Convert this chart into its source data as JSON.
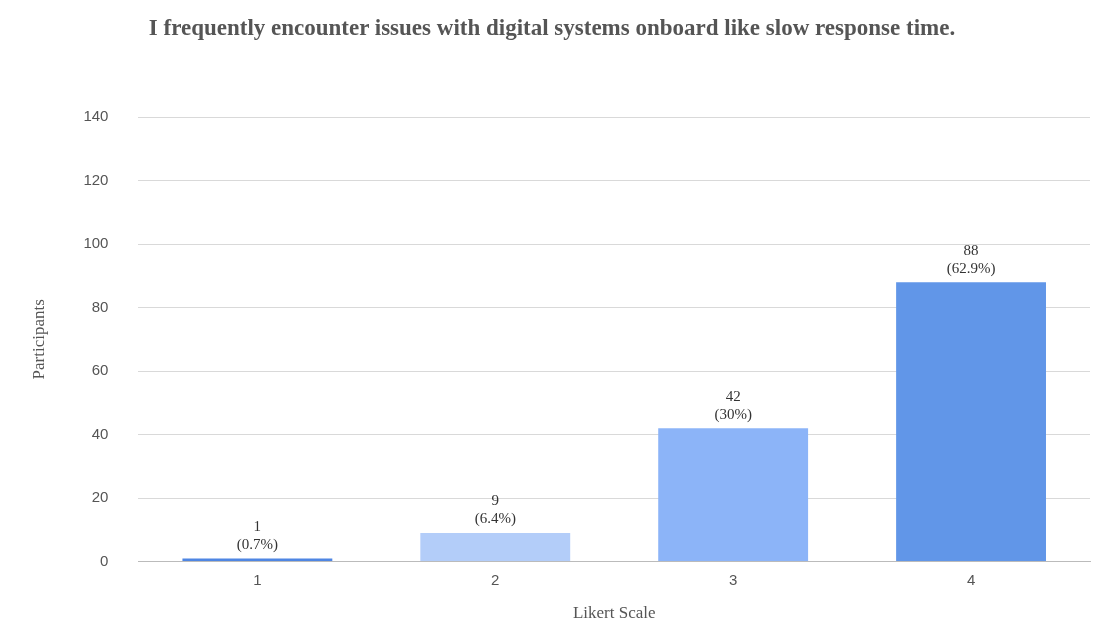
{
  "chart_data": {
    "type": "bar",
    "title": "I frequently encounter issues with digital systems onboard like slow response time.",
    "xlabel": "Likert Scale",
    "ylabel": "Participants",
    "categories": [
      "1",
      "2",
      "3",
      "4"
    ],
    "values": [
      1,
      9,
      42,
      88
    ],
    "colors": [
      "#4f86e3",
      "#b3cdf9",
      "#8cb4f8",
      "#6196e8"
    ],
    "value_labels": [
      "1\n(0.7%)",
      "9\n(6.4%)",
      "42\n(30%)",
      "88\n(62.9%)"
    ],
    "ylim": [
      0,
      140
    ],
    "yticks": [
      0,
      20,
      40,
      60,
      80,
      100,
      120,
      140
    ],
    "grid": "y",
    "legend": false
  }
}
